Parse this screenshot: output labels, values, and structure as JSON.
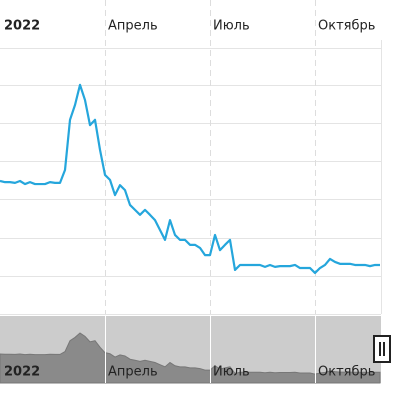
{
  "chart_data": {
    "type": "line",
    "categories": [
      "2022",
      null,
      null,
      null,
      null,
      null,
      null,
      null,
      null,
      null,
      null,
      null,
      null,
      null,
      null,
      null,
      null,
      null,
      null,
      null,
      null,
      "Апрель",
      null,
      null,
      null,
      null,
      null,
      null,
      null,
      null,
      null,
      null,
      null,
      null,
      null,
      null,
      null,
      null,
      null,
      null,
      null,
      null,
      "Июль",
      null,
      null,
      null,
      null,
      null,
      null,
      null,
      null,
      null,
      null,
      null,
      null,
      null,
      null,
      null,
      null,
      null,
      null,
      null,
      null,
      "Октябрь",
      null,
      null,
      null,
      null,
      null,
      null,
      null,
      null,
      null,
      null,
      null,
      null,
      null
    ],
    "values": [
      3.5,
      3.47,
      3.47,
      3.45,
      3.5,
      3.42,
      3.47,
      3.42,
      3.42,
      3.42,
      3.47,
      3.45,
      3.45,
      3.79,
      5.11,
      5.5,
      6.03,
      5.63,
      4.97,
      5.11,
      4.32,
      3.66,
      3.53,
      3.13,
      3.39,
      3.26,
      2.87,
      2.74,
      2.61,
      2.74,
      2.61,
      2.47,
      2.21,
      1.95,
      2.47,
      2.08,
      1.95,
      1.95,
      1.82,
      1.82,
      1.74,
      1.55,
      1.55,
      2.08,
      1.68,
      1.82,
      1.95,
      1.16,
      1.29,
      1.29,
      1.29,
      1.29,
      1.29,
      1.24,
      1.29,
      1.24,
      1.26,
      1.26,
      1.26,
      1.29,
      1.21,
      1.21,
      1.21,
      1.08,
      1.21,
      1.29,
      1.45,
      1.37,
      1.32,
      1.32,
      1.32,
      1.29,
      1.29,
      1.29,
      1.26,
      1.29,
      1.29
    ],
    "color": "#25a6dc",
    "ylim": [
      0,
      7
    ]
  }
}
